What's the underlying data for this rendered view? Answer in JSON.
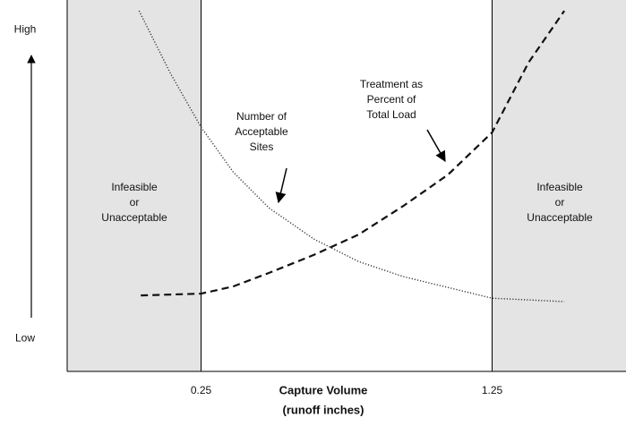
{
  "chart_data": {
    "type": "line",
    "x_label": [
      "Capture Volume",
      "(runoff inches)"
    ],
    "xlim": [
      -0.21,
      1.71
    ],
    "xticks": [
      0.25,
      1.25
    ],
    "ylim": [
      -10.7,
      109.6
    ],
    "yticks": [
      {
        "value": 0,
        "label": "Low"
      },
      {
        "value": 100,
        "label": "High"
      }
    ],
    "shading": "#e4e4e4",
    "region_labels": [
      [
        "Infeasible",
        "or",
        "Unacceptable"
      ],
      [
        "Infeasible",
        "or",
        "Unacceptable"
      ]
    ],
    "series": [
      {
        "name": [
          "Number of",
          "Acceptable",
          "Sites"
        ],
        "color": "#333333",
        "style": "dotted",
        "x": [
          0.037,
          0.145,
          0.25,
          0.36,
          0.483,
          0.637,
          0.791,
          0.945,
          1.098,
          1.25,
          1.498
        ],
        "values": [
          106.1,
          85.8,
          68.4,
          53.9,
          42.3,
          32.2,
          24.9,
          20.0,
          16.5,
          13.0,
          11.9
        ]
      },
      {
        "name": [
          "Treatment as",
          "Percent of",
          "Total Load"
        ],
        "color": "#111111",
        "style": "dashed",
        "x": [
          0.043,
          0.25,
          0.36,
          0.483,
          0.637,
          0.791,
          0.945,
          1.098,
          1.25,
          1.375,
          1.498
        ],
        "values": [
          13.9,
          14.5,
          16.8,
          21.2,
          27.0,
          33.6,
          42.9,
          53.0,
          66.7,
          89.3,
          106.1
        ]
      }
    ]
  }
}
